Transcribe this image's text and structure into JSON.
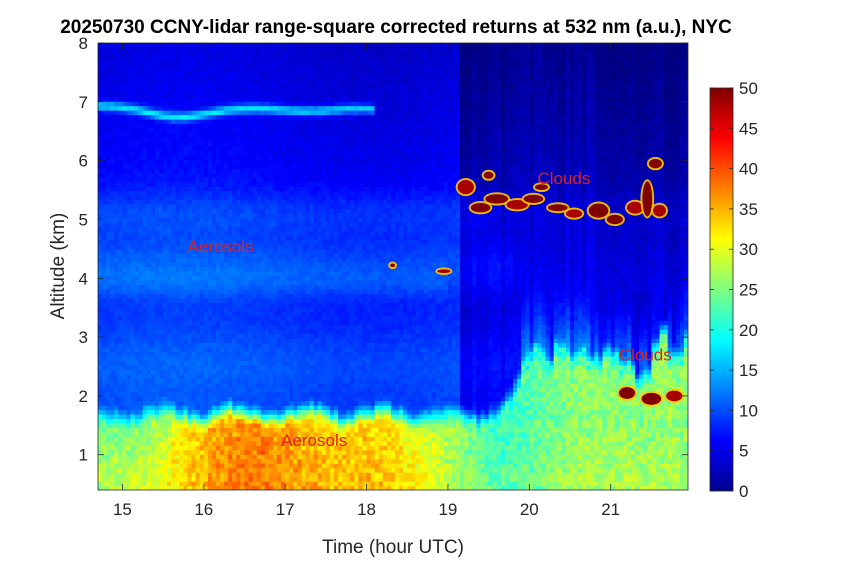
{
  "chart_data": {
    "type": "heatmap",
    "title": "20250730 CCNY-lidar range-square corrected returns at 532 nm (a.u.), NYC",
    "xlabel": "Time (hour UTC)",
    "ylabel": "Altitude (km)",
    "xlim": [
      14.7,
      21.95
    ],
    "ylim": [
      0.4,
      8
    ],
    "xticks": [
      15,
      16,
      17,
      18,
      19,
      20,
      21
    ],
    "yticks": [
      1,
      2,
      3,
      4,
      5,
      6,
      7,
      8
    ],
    "colorbar": {
      "colormap": "jet",
      "clim": [
        0,
        50
      ],
      "ticks": [
        0,
        5,
        10,
        15,
        20,
        25,
        30,
        35,
        40,
        45,
        50
      ]
    },
    "annotations": [
      {
        "text": "Clouds",
        "x": 20.1,
        "y": 5.6
      },
      {
        "text": "Aerosols",
        "x": 15.8,
        "y": 4.45
      },
      {
        "text": "Clouds",
        "x": 21.1,
        "y": 2.6
      },
      {
        "text": "Aerosols",
        "x": 16.95,
        "y": 1.15
      }
    ],
    "features": [
      {
        "name": "boundary-layer aerosol",
        "x_range": [
          14.7,
          21.95
        ],
        "y_range": [
          0.4,
          1.8
        ],
        "value_range": [
          25,
          42
        ]
      },
      {
        "name": "elevated aerosol layer",
        "x_range": [
          14.7,
          19.5
        ],
        "y_range": [
          3.9,
          5.4
        ],
        "value_range": [
          10,
          16
        ]
      },
      {
        "name": "thin layer near 7 km",
        "x_range": [
          14.7,
          18.1
        ],
        "y_range": [
          6.75,
          7.0
        ],
        "value_range": [
          15,
          22
        ]
      },
      {
        "name": "upper clouds",
        "x_range": [
          19.1,
          21.9
        ],
        "y_range": [
          4.7,
          6.1
        ],
        "value_range": [
          50,
          50
        ]
      },
      {
        "name": "low clouds",
        "x_range": [
          21.1,
          21.9
        ],
        "y_range": [
          1.85,
          2.2
        ],
        "value_range": [
          45,
          50
        ]
      },
      {
        "name": "free troposphere background",
        "x_range": [
          14.7,
          21.95
        ],
        "y_range": [
          2.0,
          8.0
        ],
        "value_range": [
          3,
          12
        ]
      }
    ]
  }
}
